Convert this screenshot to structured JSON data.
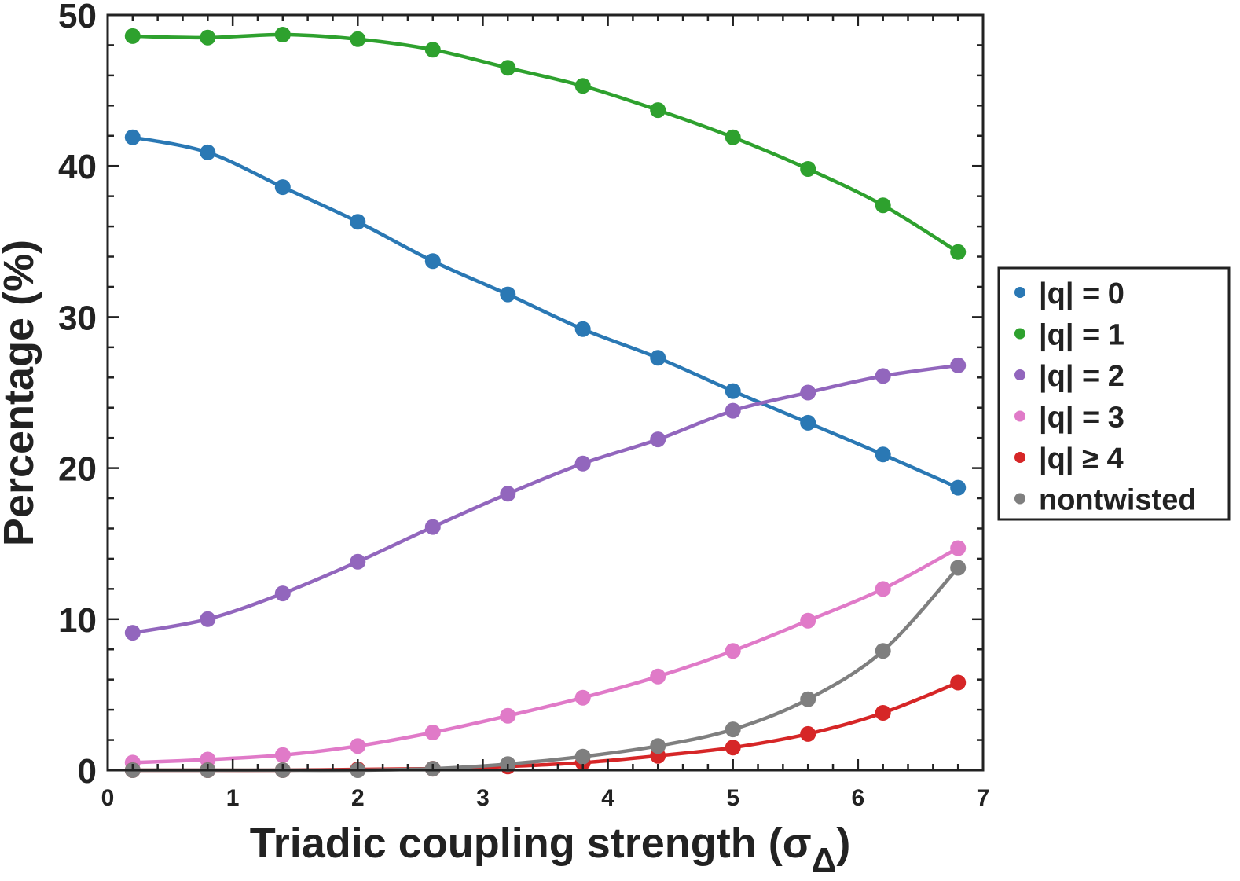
{
  "chart_data": {
    "type": "line",
    "xlabel": "Triadic coupling strength (σ",
    "xlabel_subscript": "Δ",
    "xlabel_close": ")",
    "ylabel": "Percentage (%)",
    "xlim": [
      0,
      7
    ],
    "ylim": [
      0,
      50
    ],
    "xticks": [
      "0",
      "1",
      "2",
      "3",
      "4",
      "5",
      "6",
      "7"
    ],
    "yticks": [
      "0",
      "10",
      "20",
      "30",
      "40",
      "50"
    ],
    "grid": false,
    "legend_position": "right-outside",
    "x": [
      0.2,
      0.8,
      1.4,
      2.0,
      2.6,
      3.2,
      3.8,
      4.4,
      5.0,
      5.6,
      6.2,
      6.8
    ],
    "series": [
      {
        "name": "|q| = 0",
        "color": "#2a78b4",
        "values": [
          41.9,
          40.9,
          38.6,
          36.3,
          33.7,
          31.5,
          29.2,
          27.3,
          25.1,
          23.0,
          20.9,
          18.7
        ]
      },
      {
        "name": "|q| = 1",
        "color": "#2ea12e",
        "values": [
          48.6,
          48.5,
          48.7,
          48.4,
          47.7,
          46.5,
          45.3,
          43.7,
          41.9,
          39.8,
          37.4,
          34.3
        ]
      },
      {
        "name": "|q| = 2",
        "color": "#9266bd",
        "values": [
          9.1,
          10.0,
          11.7,
          13.8,
          16.1,
          18.3,
          20.3,
          21.9,
          23.8,
          25.0,
          26.1,
          26.8
        ]
      },
      {
        "name": "|q| = 3",
        "color": "#e07ac8",
        "values": [
          0.5,
          0.7,
          1.0,
          1.6,
          2.5,
          3.6,
          4.8,
          6.2,
          7.9,
          9.9,
          12.0,
          14.7
        ]
      },
      {
        "name": "|q| ≥ 4",
        "color": "#d62627",
        "values": [
          0.0,
          0.0,
          0.0,
          0.05,
          0.1,
          0.25,
          0.5,
          0.95,
          1.5,
          2.4,
          3.8,
          5.8
        ]
      },
      {
        "name": "nontwisted",
        "color": "#7f7f7f",
        "values": [
          0.0,
          0.0,
          0.0,
          0.0,
          0.1,
          0.4,
          0.9,
          1.6,
          2.7,
          4.7,
          7.9,
          13.4
        ]
      }
    ]
  }
}
